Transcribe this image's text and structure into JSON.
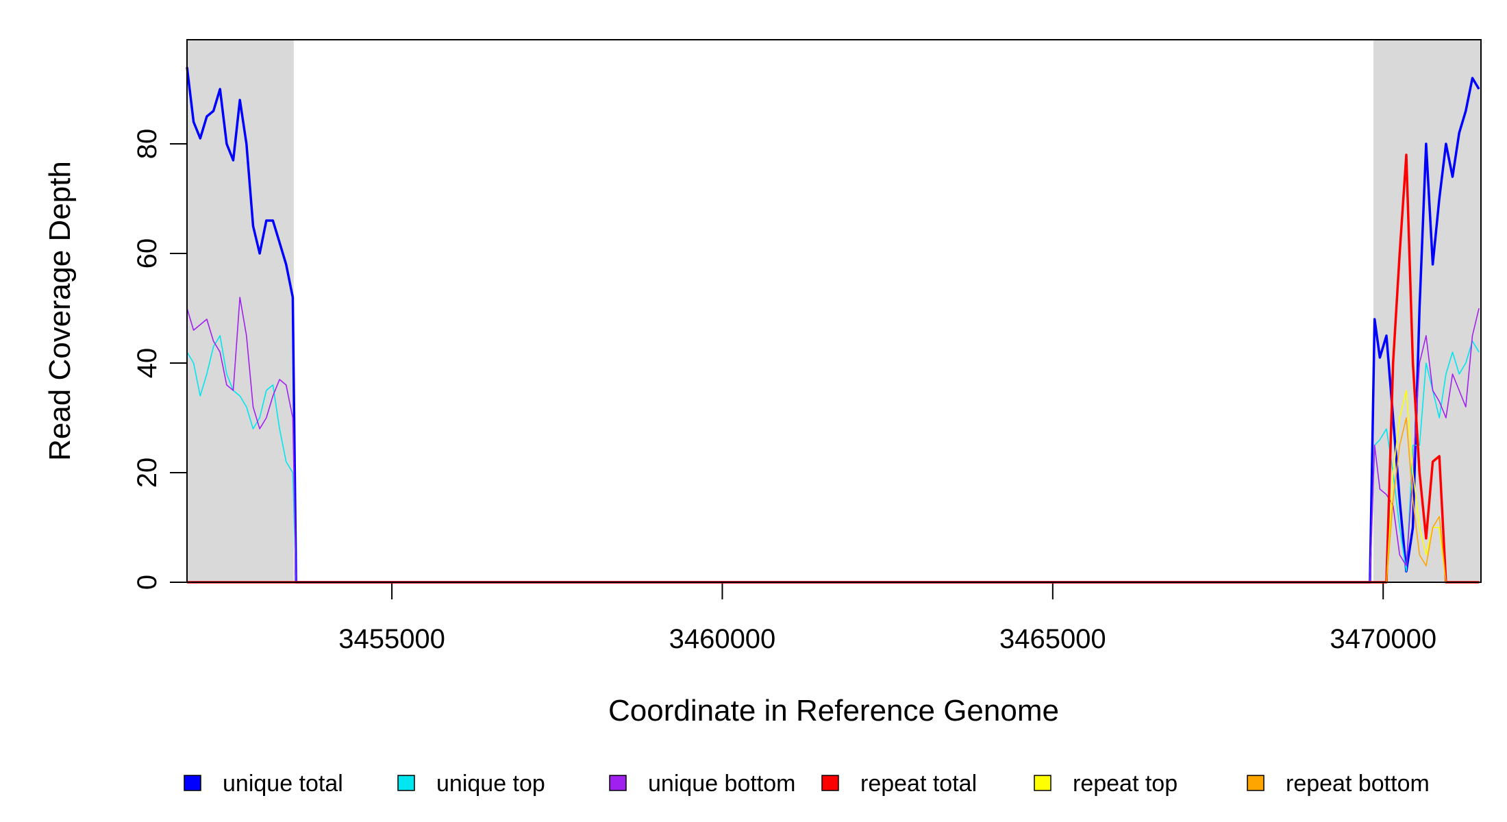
{
  "chart_data": {
    "type": "line",
    "x_label": "Coordinate in Reference Genome",
    "y_label": "Read Coverage Depth",
    "xlim": [
      3451900,
      3471480
    ],
    "ylim": [
      0,
      99
    ],
    "xticks": [
      3455000,
      3460000,
      3465000,
      3470000
    ],
    "yticks": [
      0,
      20,
      40,
      60,
      80
    ],
    "shaded_regions": [
      [
        3451900,
        3453515
      ],
      [
        3469853,
        3471480
      ]
    ],
    "shade_color": "#d9d9d9",
    "x": [
      3451900,
      3452000,
      3452100,
      3452200,
      3452300,
      3452400,
      3452500,
      3452600,
      3452700,
      3452800,
      3452900,
      3453000,
      3453100,
      3453200,
      3453300,
      3453400,
      3453500,
      3453550,
      3460000,
      3469800,
      3469870,
      3469950,
      3470050,
      3470150,
      3470250,
      3470350,
      3470450,
      3470550,
      3470650,
      3470750,
      3470850,
      3470950,
      3471050,
      3471150,
      3471250,
      3471350,
      3471450
    ],
    "series": [
      {
        "name": "unique total",
        "color": "#0000ff",
        "width": 3.5,
        "values": [
          94,
          84,
          81,
          85,
          86,
          90,
          80,
          77,
          88,
          80,
          65,
          60,
          66,
          66,
          62,
          58,
          52,
          0,
          0,
          0,
          48,
          41,
          45,
          30,
          15,
          2,
          10,
          50,
          80,
          58,
          70,
          80,
          74,
          82,
          86,
          92,
          90
        ]
      },
      {
        "name": "unique top",
        "color": "#00e5ee",
        "width": 1.6,
        "values": [
          42,
          40,
          34,
          38,
          43,
          45,
          38,
          35,
          34,
          32,
          28,
          30,
          35,
          36,
          28,
          22,
          20,
          0,
          0,
          0,
          25,
          26,
          28,
          20,
          10,
          2,
          25,
          25,
          40,
          35,
          30,
          38,
          42,
          38,
          40,
          44,
          42
        ]
      },
      {
        "name": "unique bottom",
        "color": "#a020f0",
        "width": 1.6,
        "values": [
          50,
          46,
          47,
          48,
          44,
          42,
          36,
          35,
          52,
          45,
          32,
          28,
          30,
          34,
          37,
          36,
          30,
          0,
          0,
          0,
          25,
          17,
          16,
          14,
          5,
          3,
          20,
          40,
          45,
          35,
          33,
          30,
          38,
          35,
          32,
          45,
          50
        ]
      },
      {
        "name": "repeat total",
        "color": "#ff0000",
        "width": 3.5,
        "values": [
          0,
          0,
          0,
          0,
          0,
          0,
          0,
          0,
          0,
          0,
          0,
          0,
          0,
          0,
          0,
          0,
          0,
          0,
          0,
          0,
          0,
          0,
          0,
          40,
          60,
          78,
          40,
          20,
          8,
          22,
          23,
          0,
          0,
          0,
          0,
          0,
          0
        ]
      },
      {
        "name": "repeat top",
        "color": "#ffff00",
        "width": 1.6,
        "values": [
          0,
          0,
          0,
          0,
          0,
          0,
          0,
          0,
          0,
          0,
          0,
          0,
          0,
          0,
          0,
          0,
          0,
          0,
          0,
          0,
          0,
          0,
          0,
          20,
          30,
          35,
          20,
          10,
          5,
          10,
          10,
          0,
          0,
          0,
          0,
          0,
          0
        ]
      },
      {
        "name": "repeat bottom",
        "color": "#ffa500",
        "width": 1.6,
        "values": [
          0,
          0,
          0,
          0,
          0,
          0,
          0,
          0,
          0,
          0,
          0,
          0,
          0,
          0,
          0,
          0,
          0,
          0,
          0,
          0,
          0,
          0,
          0,
          15,
          25,
          30,
          15,
          5,
          3,
          10,
          12,
          0,
          0,
          0,
          0,
          0,
          0
        ]
      }
    ]
  }
}
